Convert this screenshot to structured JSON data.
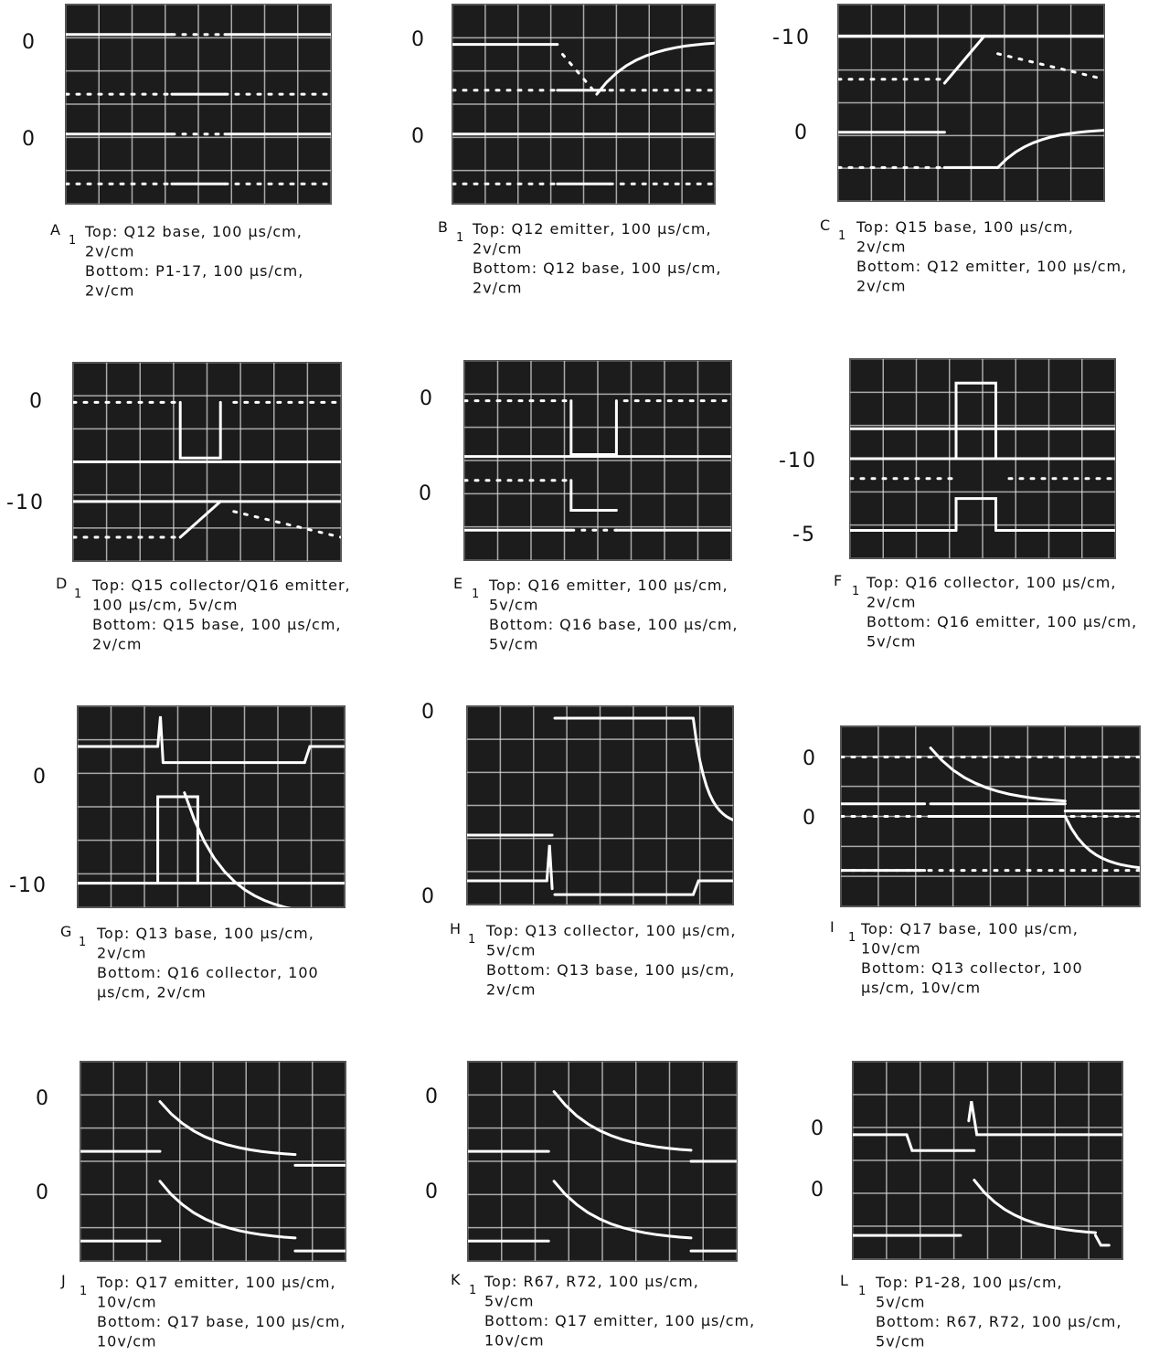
{
  "panels": [
    {
      "letter": "A",
      "mark": "1",
      "scale_labels": [
        "0",
        "0"
      ],
      "caption": [
        "Top: Q12 base, 100 μs/cm,",
        "2v/cm",
        "Bottom: P1-17, 100 μs/cm,",
        "2v/cm"
      ]
    },
    {
      "letter": "B",
      "mark": "1",
      "scale_labels": [
        "0",
        "0"
      ],
      "caption": [
        "Top: Q12 emitter, 100 μs/cm,",
        "2v/cm",
        "Bottom: Q12 base, 100 μs/cm,",
        "2v/cm"
      ]
    },
    {
      "letter": "C",
      "mark": "1",
      "scale_labels": [
        "-10",
        "0"
      ],
      "caption": [
        "Top: Q15 base, 100 μs/cm,",
        "2v/cm",
        "Bottom: Q12 emitter, 100 μs/cm,",
        "2v/cm"
      ]
    },
    {
      "letter": "D",
      "mark": "1",
      "scale_labels": [
        "0",
        "-10"
      ],
      "caption": [
        "Top: Q15 collector/Q16 emitter,",
        "100 μs/cm, 5v/cm",
        "Bottom: Q15 base, 100 μs/cm,",
        "2v/cm"
      ]
    },
    {
      "letter": "E",
      "mark": "1",
      "scale_labels": [
        "0",
        "0"
      ],
      "caption": [
        "Top: Q16 emitter, 100 μs/cm,",
        "5v/cm",
        "Bottom: Q16 base, 100 μs/cm,",
        "5v/cm"
      ]
    },
    {
      "letter": "F",
      "mark": "1",
      "scale_labels": [
        "-10",
        "-5"
      ],
      "caption": [
        "Top: Q16 collector, 100 μs/cm,",
        "2v/cm",
        "Bottom: Q16 emitter, 100 μs/cm,",
        "5v/cm"
      ]
    },
    {
      "letter": "G",
      "mark": "1",
      "scale_labels": [
        "0",
        "-10"
      ],
      "caption": [
        "Top: Q13 base, 100 μs/cm,",
        "2v/cm",
        "Bottom: Q16 collector, 100",
        "μs/cm, 2v/cm"
      ]
    },
    {
      "letter": "H",
      "mark": "1",
      "scale_labels": [
        "0",
        "0"
      ],
      "caption": [
        "Top: Q13 collector, 100 μs/cm,",
        "5v/cm",
        "Bottom: Q13 base, 100 μs/cm,",
        "2v/cm"
      ]
    },
    {
      "letter": "I",
      "mark": "1",
      "scale_labels": [
        "0",
        "0"
      ],
      "caption": [
        "Top: Q17 base, 100 μs/cm,",
        "10v/cm",
        "Bottom: Q13 collector, 100",
        "μs/cm, 10v/cm"
      ]
    },
    {
      "letter": "J",
      "mark": "1",
      "scale_labels": [
        "0",
        "0"
      ],
      "caption": [
        "Top: Q17 emitter, 100 μs/cm,",
        "10v/cm",
        "Bottom: Q17 base, 100 μs/cm,",
        "10v/cm"
      ]
    },
    {
      "letter": "K",
      "mark": "1",
      "scale_labels": [
        "0",
        "0"
      ],
      "caption": [
        "Top: R67, R72, 100 μs/cm,",
        "5v/cm",
        "Bottom: Q17 emitter, 100 μs/cm,",
        "10v/cm"
      ]
    },
    {
      "letter": "L",
      "mark": "1",
      "scale_labels": [
        "0",
        "0"
      ],
      "caption": [
        "Top: P1-28, 100 μs/cm,",
        "5v/cm",
        "Bottom: R67, R72, 100 μs/cm,",
        "5v/cm"
      ]
    }
  ]
}
